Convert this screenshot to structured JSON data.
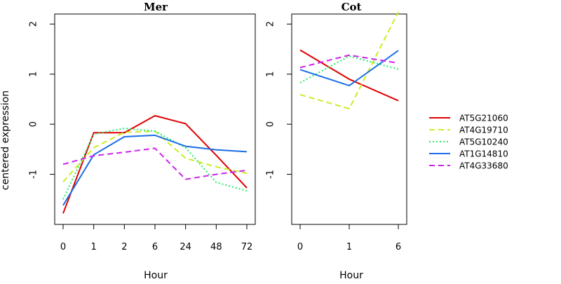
{
  "chart_data": {
    "type": "line",
    "ylabel": "centered expression",
    "ylim": [
      -2,
      2.2
    ],
    "yticks": [
      -1,
      0,
      1,
      2
    ],
    "grid": false,
    "legend_position": "right",
    "series_styles": [
      {
        "name": "AT5G21060",
        "color": "#e00000",
        "dash": "solid"
      },
      {
        "name": "AT4G19710",
        "color": "#c8ee22",
        "dash": "dashed"
      },
      {
        "name": "AT5G10240",
        "color": "#22ee66",
        "dash": "dotted"
      },
      {
        "name": "AT1G14810",
        "color": "#1a6ee6",
        "dash": "solid"
      },
      {
        "name": "AT4G33680",
        "color": "#cc22ee",
        "dash": "dashed"
      }
    ],
    "panels": [
      {
        "title": "Mer",
        "xlabel": "Hour",
        "categories": [
          "0",
          "1",
          "2",
          "6",
          "24",
          "48",
          "72"
        ],
        "series": [
          {
            "name": "AT5G21060",
            "values": [
              -1.78,
              -0.17,
              -0.17,
              0.17,
              0.01,
              -0.62,
              -1.27
            ]
          },
          {
            "name": "AT4G19710",
            "values": [
              -1.15,
              -0.47,
              -0.16,
              -0.14,
              -0.68,
              -0.85,
              -0.98
            ]
          },
          {
            "name": "AT5G10240",
            "values": [
              -1.5,
              -0.2,
              -0.08,
              -0.14,
              -0.47,
              -1.16,
              -1.33
            ]
          },
          {
            "name": "AT1G14810",
            "values": [
              -1.62,
              -0.61,
              -0.25,
              -0.22,
              -0.44,
              -0.51,
              -0.55
            ]
          },
          {
            "name": "AT4G33680",
            "values": [
              -0.8,
              -0.63,
              -0.56,
              -0.48,
              -1.1,
              -1.0,
              -0.92
            ]
          }
        ]
      },
      {
        "title": "Cot",
        "xlabel": "Hour",
        "categories": [
          "0",
          "1",
          "6"
        ],
        "series": [
          {
            "name": "AT5G21060",
            "values": [
              1.48,
              0.9,
              0.47
            ]
          },
          {
            "name": "AT4G19710",
            "values": [
              0.59,
              0.31,
              2.24
            ]
          },
          {
            "name": "AT5G10240",
            "values": [
              0.83,
              1.36,
              1.1
            ]
          },
          {
            "name": "AT1G14810",
            "values": [
              1.09,
              0.77,
              1.47
            ]
          },
          {
            "name": "AT4G33680",
            "values": [
              1.13,
              1.38,
              1.22
            ]
          }
        ]
      }
    ]
  }
}
